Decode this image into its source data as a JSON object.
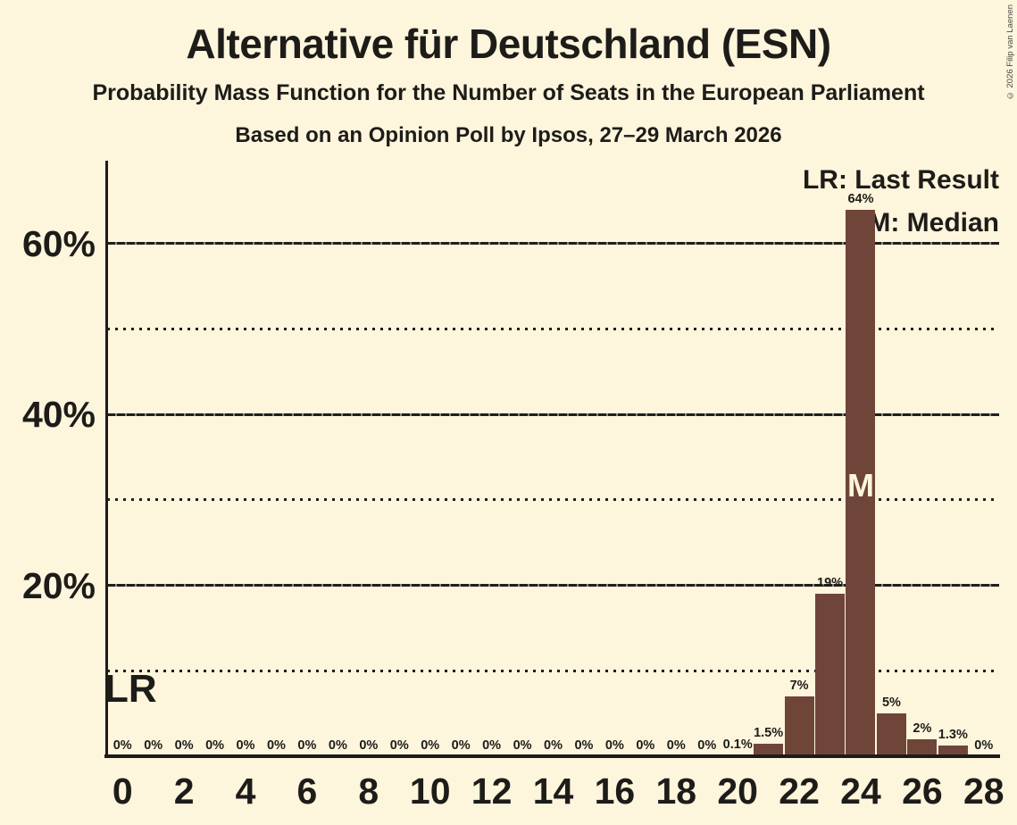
{
  "page": {
    "background_color": "#fdf5dc",
    "text_color": "#1d1c19"
  },
  "header": {
    "title": "Alternative für Deutschland (ESN)",
    "subtitle": "Probability Mass Function for the Number of Seats in the European Parliament",
    "poll_line": "Based on an Opinion Poll by Ipsos, 27–29 March 2026"
  },
  "copyright": "© 2026 Filip van Laenen",
  "legend": {
    "lr_label": "LR: Last Result",
    "m_label": "M: Median",
    "position": "top-right"
  },
  "annotations": {
    "last_result_marker": "LR",
    "median_marker": "M",
    "median_marker_color": "#fdf5dc"
  },
  "chart_data": {
    "type": "bar",
    "title": "Alternative für Deutschland (ESN)",
    "subtitle": "Probability Mass Function for the Number of Seats in the European Parliament",
    "xlabel": "",
    "ylabel": "",
    "categories": [
      0,
      1,
      2,
      3,
      4,
      5,
      6,
      7,
      8,
      9,
      10,
      11,
      12,
      13,
      14,
      15,
      16,
      17,
      18,
      19,
      20,
      21,
      22,
      23,
      24,
      25,
      26,
      27,
      28
    ],
    "values": [
      0,
      0,
      0,
      0,
      0,
      0,
      0,
      0,
      0,
      0,
      0,
      0,
      0,
      0,
      0,
      0,
      0,
      0,
      0,
      0,
      0.1,
      1.5,
      7,
      19,
      64,
      5,
      2,
      1.3,
      0
    ],
    "bar_labels": [
      "0%",
      "0%",
      "0%",
      "0%",
      "0%",
      "0%",
      "0%",
      "0%",
      "0%",
      "0%",
      "0%",
      "0%",
      "0%",
      "0%",
      "0%",
      "0%",
      "0%",
      "0%",
      "0%",
      "0%",
      "0.1%",
      "1.5%",
      "7%",
      "19%",
      "64%",
      "5%",
      "2%",
      "1.3%",
      "0%"
    ],
    "x_tick_seats": [
      0,
      2,
      4,
      6,
      8,
      10,
      12,
      14,
      16,
      18,
      20,
      22,
      24,
      26,
      28
    ],
    "y_ticks": [
      {
        "pct": 20,
        "label": "20%"
      },
      {
        "pct": 40,
        "label": "40%"
      },
      {
        "pct": 60,
        "label": "60%"
      }
    ],
    "minor_gridlines_pct": [
      10,
      30,
      50
    ],
    "ylim": [
      0,
      70
    ],
    "grid": true,
    "bar_color": "#6f4539",
    "median_seat": 24
  }
}
